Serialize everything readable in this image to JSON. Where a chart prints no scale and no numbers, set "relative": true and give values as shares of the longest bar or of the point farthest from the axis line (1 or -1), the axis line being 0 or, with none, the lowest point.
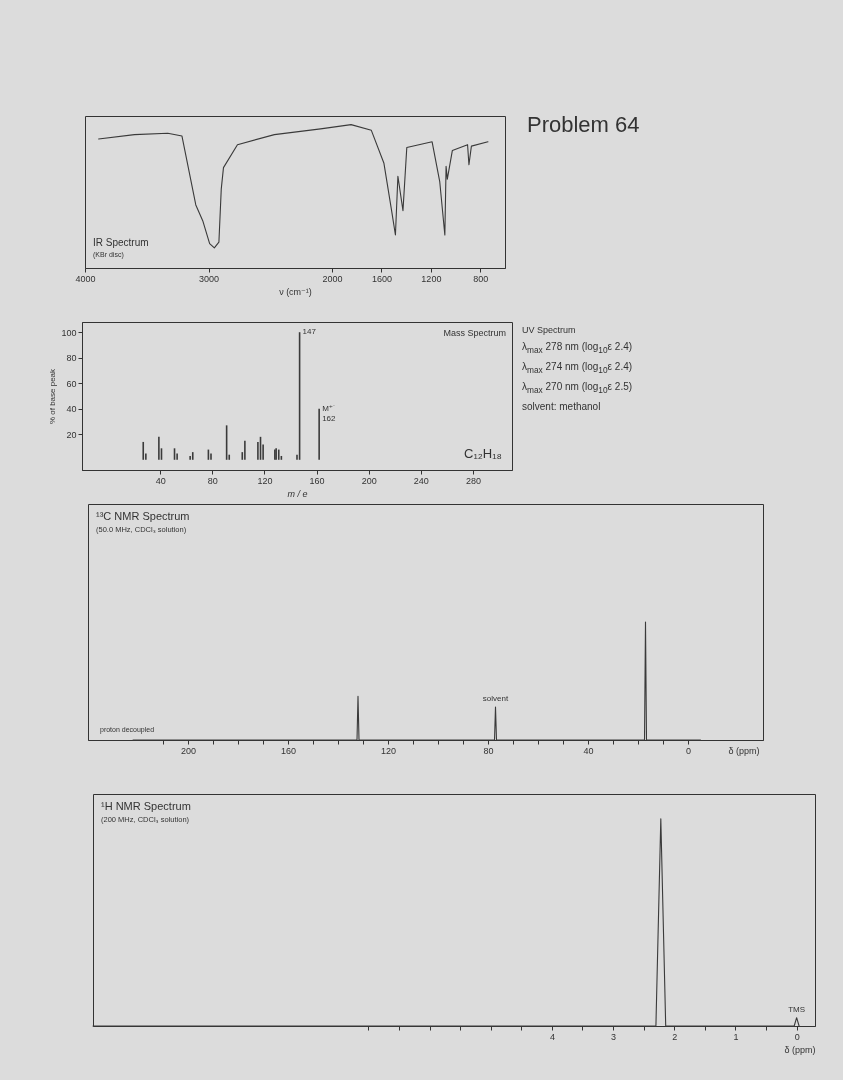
{
  "chart_data": [
    {
      "type": "line",
      "title": "IR Spectrum",
      "subtitle": "(KBr disc)",
      "xlabel": "ν (cm⁻¹)",
      "relative": true,
      "color": "#3a3a3a",
      "xlim": [
        4000,
        600
      ],
      "xticks": [
        4000,
        3000,
        2000,
        1600,
        1200,
        800
      ],
      "x": [
        3890,
        3600,
        3330,
        3215,
        3103,
        3047,
        2991,
        2953,
        2916,
        2897,
        2879,
        2766,
        2467,
        2093,
        1846,
        1682,
        1580,
        1518,
        1487,
        1467,
        1426,
        1395,
        1190,
        1128,
        1087,
        1077,
        1067,
        1026,
        903,
        892,
        872,
        738
      ],
      "values": [
        0.9,
        0.93,
        0.94,
        0.92,
        0.44,
        0.33,
        0.17,
        0.14,
        0.18,
        0.55,
        0.7,
        0.86,
        0.93,
        0.97,
        1.0,
        0.96,
        0.73,
        0.4,
        0.23,
        0.64,
        0.4,
        0.84,
        0.88,
        0.6,
        0.23,
        0.71,
        0.62,
        0.82,
        0.86,
        0.72,
        0.85,
        0.88
      ]
    },
    {
      "type": "other",
      "title": "Problem 64"
    },
    {
      "type": "bar",
      "title": "Mass Spectrum",
      "xlabel": "m / e",
      "ylabel": "% of base peak",
      "color": "#3a3a3a",
      "xlim": [
        -20,
        310
      ],
      "xticks": [
        40,
        80,
        120,
        160,
        200,
        240,
        280
      ],
      "ylim": [
        -8,
        108
      ],
      "yticks": [
        20,
        40,
        60,
        80,
        100
      ],
      "x": [
        27,
        29,
        39,
        41,
        51,
        53,
        63,
        65,
        77,
        79,
        91,
        93,
        103,
        105,
        115,
        117,
        119,
        128,
        129,
        131,
        133,
        145,
        147,
        162
      ],
      "values": [
        14,
        5,
        18,
        9,
        9,
        5,
        3,
        6,
        8,
        5,
        27,
        4,
        6,
        15,
        14,
        18,
        12,
        8,
        9,
        8,
        3,
        4,
        100,
        40
      ],
      "annotations": [
        {
          "text": "147",
          "x": 147,
          "y": 100
        },
        {
          "text": "M⁺˙\n162",
          "x": 162,
          "y": 40
        },
        "C₁₂H₁₈"
      ]
    },
    {
      "type": "other",
      "title": "UV Spectrum",
      "annotations": [
        "λ$_{max}$ 278 nm (log$_{10}$ε 2.4)",
        "λ$_{max}$ 274 nm (log$_{10}$ε 2.4)",
        "λ$_{max}$ 270 nm (log$_{10}$ε 2.5)",
        "solvent: methanol"
      ]
    },
    {
      "type": "line",
      "title": "¹³C NMR Spectrum",
      "subtitle": "(50.0 MHz, CDCl₃ solution)",
      "xlabel": "δ (ppm)",
      "relative": true,
      "color": "#3a3a3a",
      "xlim": [
        240,
        -30
      ],
      "xticks": [
        {
          "value": 210,
          "label": null
        },
        200,
        {
          "value": 190,
          "label": null
        },
        {
          "value": 180,
          "label": null
        },
        {
          "value": 170,
          "label": null
        },
        160,
        {
          "value": 150,
          "label": null
        },
        {
          "value": 140,
          "label": null
        },
        {
          "value": 130,
          "label": null
        },
        120,
        {
          "value": 110,
          "label": null
        },
        {
          "value": 100,
          "label": null
        },
        {
          "value": 90,
          "label": null
        },
        80,
        {
          "value": 70,
          "label": null
        },
        {
          "value": 60,
          "label": null
        },
        {
          "value": 50,
          "label": null
        },
        40,
        {
          "value": 30,
          "label": null
        },
        {
          "value": 20,
          "label": null
        },
        {
          "value": 10,
          "label": null
        },
        0
      ],
      "x": [
        222,
        132.4,
        132,
        131.6,
        77.4,
        77,
        76.6,
        17.4,
        17,
        16.6,
        -5
      ],
      "values": [
        0,
        0,
        0.37,
        0,
        0,
        0.28,
        0,
        0,
        1,
        0,
        0
      ],
      "annotations": [
        {
          "text": "solvent",
          "x": 77,
          "y": 0.28
        },
        "proton decoupled"
      ]
    },
    {
      "type": "line",
      "title": "¹H NMR Spectrum",
      "subtitle": "(200 MHz, CDCl₃ solution)",
      "xlabel": "δ (ppm)",
      "relative": true,
      "color": "#3a3a3a",
      "xlim": [
        11.5,
        -0.3
      ],
      "xticks": [
        0,
        {
          "value": 0.5,
          "label": null
        },
        1,
        {
          "value": 1.5,
          "label": null
        },
        2,
        {
          "value": 2.5,
          "label": null
        },
        3,
        {
          "value": 3.5,
          "label": null
        },
        4,
        {
          "value": 4.5,
          "label": null
        },
        {
          "value": 5,
          "label": null
        },
        {
          "value": 5.5,
          "label": null
        },
        {
          "value": 6,
          "label": null
        },
        {
          "value": 6.5,
          "label": null
        },
        {
          "value": 7,
          "label": null
        }
      ],
      "x": [
        11.5,
        2.3,
        2.22,
        2.14,
        0.04,
        0,
        -0.04
      ],
      "values": [
        0,
        0,
        1,
        0,
        0,
        0.04,
        0
      ],
      "annotations": [
        {
          "text": "TMS",
          "x": 0,
          "y": 0.04
        }
      ]
    }
  ]
}
